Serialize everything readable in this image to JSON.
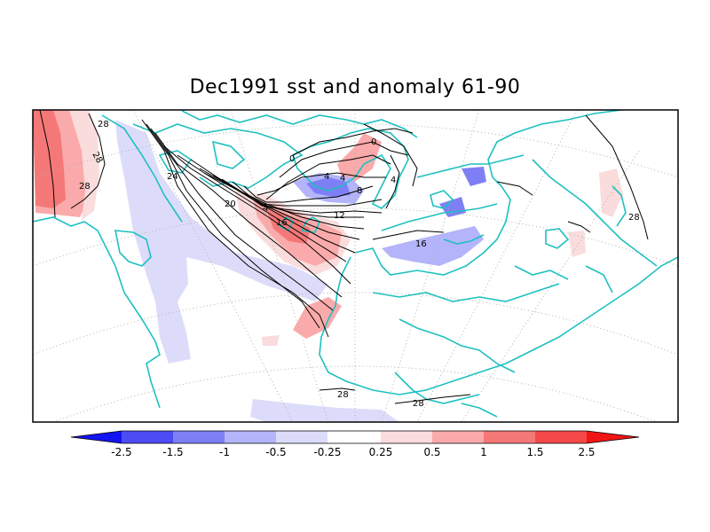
{
  "title": "Dec1991 sst and anomaly 61-90",
  "colors": {
    "land_outline": "#1ec0c0",
    "grid": "#b0b0b0",
    "contour": "#000000",
    "neg_1": "#dcdcfa",
    "neg_2": "#b4b4fa",
    "neg_3": "#7f7ff5",
    "neg_4": "#4c4cf5",
    "neg_5": "#1414f0",
    "pos_1": "#fadcdc",
    "pos_2": "#faaaaa",
    "pos_3": "#f57878",
    "pos_4": "#f54848",
    "pos_5": "#f01414"
  },
  "contour_labels": [
    "28",
    "28",
    "28",
    "24",
    "20",
    "4",
    "16",
    "12",
    "8",
    "4",
    "4",
    "0",
    "0",
    "4",
    "16",
    "28",
    "28",
    "28"
  ],
  "colorbar": {
    "ticks": [
      "-2.5",
      "-1.5",
      "-1",
      "-0.5",
      "-0.25",
      "0.25",
      "0.5",
      "1",
      "1.5",
      "2.5"
    ]
  }
}
